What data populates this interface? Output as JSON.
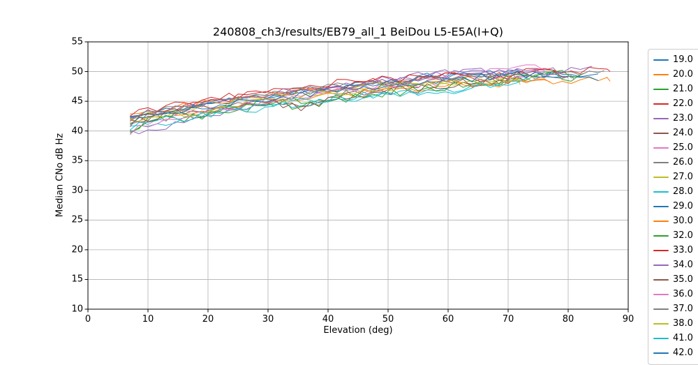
{
  "chart_data": {
    "type": "line",
    "title": "240808_ch3/results/EB79_all_1 BeiDou L5-E5A(I+Q)",
    "xlabel": "Elevation (deg)",
    "ylabel": "Median CNo dB Hz",
    "xlim": [
      0,
      90
    ],
    "ylim": [
      10,
      55
    ],
    "x_ticks": [
      0,
      10,
      20,
      30,
      40,
      50,
      60,
      70,
      80,
      90
    ],
    "y_ticks": [
      10,
      15,
      20,
      25,
      30,
      35,
      40,
      45,
      50,
      55
    ],
    "grid": true,
    "grid_color": "#b0b0b0",
    "spine_color": "#000000",
    "legend_position": "outside-right",
    "legend_last_entry_clipped_by_figure_bottom": true,
    "series": [
      {
        "name": "19.0",
        "color": "#1f77b4",
        "noise": 1.3,
        "anchors": [
          [
            7,
            42.3
          ],
          [
            12,
            43.2
          ],
          [
            20,
            44.6
          ],
          [
            30,
            46.0
          ],
          [
            40,
            47.1
          ],
          [
            50,
            48.4
          ],
          [
            60,
            49.5
          ],
          [
            70,
            49.8
          ],
          [
            78,
            49.6
          ],
          [
            85,
            49.3
          ]
        ]
      },
      {
        "name": "20.0",
        "color": "#ff7f0e",
        "noise": 1.3,
        "anchors": [
          [
            7,
            41.6
          ],
          [
            12,
            42.6
          ],
          [
            20,
            43.6
          ],
          [
            30,
            45.0
          ],
          [
            40,
            46.0
          ],
          [
            50,
            46.9
          ],
          [
            60,
            47.6
          ],
          [
            70,
            48.0
          ],
          [
            80,
            48.3
          ],
          [
            87,
            48.5
          ]
        ]
      },
      {
        "name": "21.0",
        "color": "#2ca02c",
        "noise": 2.0,
        "anchors": [
          [
            7,
            40.6
          ],
          [
            12,
            42.0
          ],
          [
            20,
            43.1
          ],
          [
            30,
            44.6
          ],
          [
            40,
            45.6
          ],
          [
            50,
            47.1
          ],
          [
            60,
            48.1
          ],
          [
            70,
            48.6
          ],
          [
            76,
            49.0
          ],
          [
            83,
            49.4
          ]
        ]
      },
      {
        "name": "22.0",
        "color": "#d62728",
        "noise": 1.3,
        "anchors": [
          [
            7,
            42.1
          ],
          [
            12,
            43.4
          ],
          [
            20,
            45.0
          ],
          [
            30,
            46.5
          ],
          [
            40,
            47.6
          ],
          [
            50,
            48.6
          ],
          [
            60,
            49.4
          ],
          [
            68,
            49.3
          ],
          [
            75,
            50.6
          ],
          [
            80,
            50.2
          ],
          [
            87,
            50.4
          ]
        ]
      },
      {
        "name": "23.0",
        "color": "#9467bd",
        "noise": 1.2,
        "anchors": [
          [
            7,
            40.0
          ],
          [
            9,
            39.5
          ],
          [
            14,
            41.2
          ],
          [
            20,
            42.6
          ],
          [
            30,
            45.4
          ],
          [
            40,
            47.4
          ],
          [
            50,
            48.8
          ],
          [
            60,
            49.9
          ],
          [
            70,
            50.1
          ],
          [
            78,
            50.4
          ]
        ]
      },
      {
        "name": "24.0",
        "color": "#8c564b",
        "noise": 2.0,
        "anchors": [
          [
            7,
            41.9
          ],
          [
            12,
            43.0
          ],
          [
            20,
            44.1
          ],
          [
            28,
            45.3
          ],
          [
            34,
            43.8
          ],
          [
            40,
            45.6
          ],
          [
            50,
            47.0
          ],
          [
            60,
            48.0
          ],
          [
            68,
            48.5
          ],
          [
            73,
            48.3
          ]
        ]
      },
      {
        "name": "25.0",
        "color": "#e377c2",
        "noise": 1.3,
        "anchors": [
          [
            7,
            40.9
          ],
          [
            12,
            42.2
          ],
          [
            20,
            43.6
          ],
          [
            30,
            45.1
          ],
          [
            40,
            46.6
          ],
          [
            50,
            48.0
          ],
          [
            60,
            49.0
          ],
          [
            68,
            50.0
          ],
          [
            74,
            51.0
          ],
          [
            76,
            50.7
          ]
        ]
      },
      {
        "name": "26.0",
        "color": "#7f7f7f",
        "noise": 1.2,
        "anchors": [
          [
            7,
            41.6
          ],
          [
            12,
            43.0
          ],
          [
            20,
            44.6
          ],
          [
            30,
            46.4
          ],
          [
            40,
            47.5
          ],
          [
            50,
            48.5
          ],
          [
            60,
            49.0
          ],
          [
            70,
            49.0
          ],
          [
            78,
            49.3
          ],
          [
            86,
            50.2
          ]
        ]
      },
      {
        "name": "27.0",
        "color": "#bcbd22",
        "noise": 1.3,
        "anchors": [
          [
            7,
            42.0
          ],
          [
            12,
            43.0
          ],
          [
            20,
            44.1
          ],
          [
            30,
            45.8
          ],
          [
            40,
            46.8
          ],
          [
            50,
            47.8
          ],
          [
            60,
            48.5
          ],
          [
            68,
            48.9
          ],
          [
            74,
            49.0
          ]
        ]
      },
      {
        "name": "28.0",
        "color": "#17becf",
        "noise": 1.4,
        "anchors": [
          [
            7,
            40.3
          ],
          [
            12,
            41.5
          ],
          [
            20,
            42.6
          ],
          [
            30,
            44.0
          ],
          [
            40,
            45.1
          ],
          [
            50,
            46.0
          ],
          [
            58,
            46.4
          ],
          [
            64,
            47.0
          ],
          [
            70,
            48.0
          ],
          [
            72,
            48.1
          ]
        ]
      },
      {
        "name": "29.0",
        "color": "#1f77b4",
        "noise": 1.2,
        "anchors": [
          [
            7,
            41.9
          ],
          [
            12,
            43.1
          ],
          [
            20,
            44.3
          ],
          [
            30,
            45.9
          ],
          [
            40,
            46.9
          ],
          [
            50,
            48.1
          ],
          [
            60,
            49.3
          ],
          [
            68,
            49.8
          ],
          [
            76,
            49.4
          ],
          [
            85,
            48.9
          ]
        ]
      },
      {
        "name": "30.0",
        "color": "#ff7f0e",
        "noise": 1.4,
        "anchors": [
          [
            7,
            42.2
          ],
          [
            12,
            43.4
          ],
          [
            20,
            44.8
          ],
          [
            30,
            46.2
          ],
          [
            40,
            46.6
          ],
          [
            50,
            47.3
          ],
          [
            60,
            48.2
          ],
          [
            68,
            47.9
          ],
          [
            77,
            48.2
          ]
        ]
      },
      {
        "name": "32.0",
        "color": "#2ca02c",
        "noise": 1.8,
        "anchors": [
          [
            7,
            40.1
          ],
          [
            12,
            41.6
          ],
          [
            20,
            42.9
          ],
          [
            30,
            44.3
          ],
          [
            40,
            44.9
          ],
          [
            50,
            46.6
          ],
          [
            60,
            47.6
          ],
          [
            70,
            48.9
          ],
          [
            78,
            49.8
          ],
          [
            82,
            49.4
          ]
        ]
      },
      {
        "name": "33.0",
        "color": "#d62728",
        "noise": 1.3,
        "anchors": [
          [
            7,
            42.7
          ],
          [
            12,
            43.9
          ],
          [
            20,
            45.2
          ],
          [
            30,
            46.8
          ],
          [
            40,
            48.0
          ],
          [
            50,
            48.8
          ],
          [
            60,
            49.2
          ],
          [
            66,
            48.6
          ],
          [
            72,
            49.4
          ],
          [
            76,
            49.9
          ],
          [
            80,
            49.5
          ]
        ]
      },
      {
        "name": "34.0",
        "color": "#9467bd",
        "noise": 1.2,
        "anchors": [
          [
            7,
            42.4
          ],
          [
            12,
            43.5
          ],
          [
            20,
            44.6
          ],
          [
            30,
            46.3
          ],
          [
            40,
            47.2
          ],
          [
            50,
            48.3
          ],
          [
            60,
            49.6
          ],
          [
            67,
            50.2
          ],
          [
            75,
            49.9
          ],
          [
            84,
            50.4
          ]
        ]
      },
      {
        "name": "35.0",
        "color": "#8c564b",
        "noise": 1.9,
        "anchors": [
          [
            7,
            41.2
          ],
          [
            12,
            42.6
          ],
          [
            20,
            43.9
          ],
          [
            28,
            45.0
          ],
          [
            35,
            43.6
          ],
          [
            42,
            46.0
          ],
          [
            50,
            46.8
          ],
          [
            58,
            47.6
          ],
          [
            65,
            48.2
          ],
          [
            70,
            48.5
          ]
        ]
      },
      {
        "name": "36.0",
        "color": "#e377c2",
        "noise": 1.3,
        "anchors": [
          [
            7,
            39.9
          ],
          [
            12,
            41.8
          ],
          [
            20,
            43.2
          ],
          [
            30,
            44.9
          ],
          [
            40,
            46.2
          ],
          [
            50,
            47.4
          ],
          [
            60,
            48.4
          ],
          [
            70,
            49.3
          ],
          [
            76,
            50.1
          ]
        ]
      },
      {
        "name": "37.0",
        "color": "#7f7f7f",
        "noise": 1.2,
        "anchors": [
          [
            7,
            42.2
          ],
          [
            12,
            43.4
          ],
          [
            20,
            44.7
          ],
          [
            30,
            46.1
          ],
          [
            40,
            47.3
          ],
          [
            50,
            48.2
          ],
          [
            60,
            48.8
          ],
          [
            70,
            49.5
          ],
          [
            76,
            49.0
          ],
          [
            81,
            49.2
          ]
        ]
      },
      {
        "name": "38.0",
        "color": "#bcbd22",
        "noise": 1.4,
        "anchors": [
          [
            7,
            41.0
          ],
          [
            12,
            42.4
          ],
          [
            20,
            43.7
          ],
          [
            30,
            45.3
          ],
          [
            40,
            46.3
          ],
          [
            50,
            47.1
          ],
          [
            60,
            48.0
          ],
          [
            66,
            48.2
          ],
          [
            72,
            48.5
          ]
        ]
      },
      {
        "name": "41.0",
        "color": "#17becf",
        "noise": 1.5,
        "anchors": [
          [
            7,
            40.6
          ],
          [
            12,
            41.8
          ],
          [
            20,
            42.9
          ],
          [
            30,
            44.5
          ],
          [
            40,
            45.5
          ],
          [
            50,
            46.3
          ],
          [
            58,
            46.7
          ],
          [
            64,
            47.3
          ],
          [
            70,
            48.4
          ],
          [
            74,
            48.8
          ]
        ]
      },
      {
        "name": "42.0",
        "color": "#1f77b4",
        "noise": 1.3,
        "anchors": [
          [
            7,
            41.4
          ],
          [
            12,
            42.6
          ],
          [
            20,
            44.0
          ],
          [
            30,
            45.5
          ],
          [
            40,
            46.6
          ],
          [
            50,
            47.6
          ],
          [
            60,
            48.6
          ],
          [
            70,
            49.4
          ],
          [
            79,
            49.6
          ]
        ]
      }
    ]
  }
}
